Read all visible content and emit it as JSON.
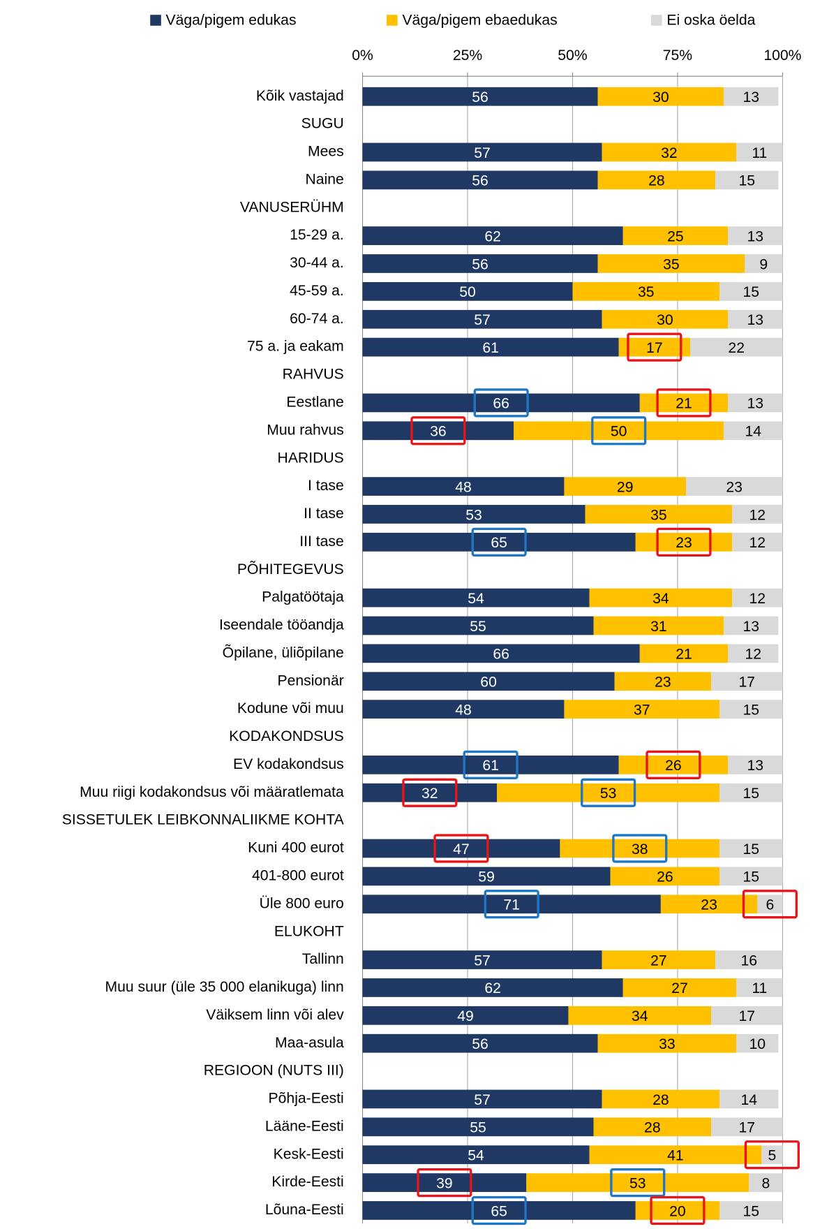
{
  "chart_data": {
    "type": "stacked_barh",
    "categories": [
      "Kõik vastajad",
      "SUGU",
      "Mees",
      "Naine",
      "VANUSERÜHM",
      "15-29 a.",
      "30-44 a.",
      "45-59 a.",
      "60-74 a.",
      "75 a. ja eakam",
      "RAHVUS",
      "Eestlane",
      "Muu rahvus",
      "HARIDUS",
      "I tase",
      "II tase",
      "III tase",
      "PÕHITEGEVUS",
      "Palgatöötaja",
      "Iseendale tööandja",
      "Õpilane, üliõpilane",
      "Pensionär",
      "Kodune või muu",
      "KODAKONDSUS",
      "EV kodakondsus",
      "Muu riigi kodakondsus või määratlemata",
      "SISSETULEK LEIBKONNALIIKME KOHTA",
      "Kuni 400 eurot",
      "401-800 eurot",
      "Üle 800 euro",
      "ELUKOHT",
      "Tallinn",
      "Muu suur (üle 35 000 elanikuga) linn",
      "Väiksem linn või alev",
      "Maa-asula",
      "REGIOON (NUTS III)",
      "Põhja-Eesti",
      "Lääne-Eesti",
      "Kesk-Eesti",
      "Kirde-Eesti",
      "Lõuna-Eesti"
    ],
    "series": [
      {
        "name": "Väga/pigem edukas",
        "color": "#1f3864",
        "label_color": "#ffffff",
        "values": [
          56,
          null,
          57,
          56,
          null,
          62,
          56,
          50,
          57,
          61,
          null,
          66,
          36,
          null,
          48,
          53,
          65,
          null,
          54,
          55,
          66,
          60,
          48,
          null,
          61,
          32,
          null,
          47,
          59,
          71,
          null,
          57,
          62,
          49,
          56,
          null,
          57,
          55,
          54,
          39,
          65
        ],
        "label_box": [
          null,
          null,
          null,
          null,
          null,
          null,
          null,
          null,
          null,
          null,
          null,
          "#1f77c4",
          "#e8141a",
          null,
          null,
          null,
          "#1f77c4",
          null,
          null,
          null,
          null,
          null,
          null,
          null,
          "#1f77c4",
          "#e8141a",
          null,
          "#e8141a",
          null,
          "#1f77c4",
          null,
          null,
          null,
          null,
          null,
          null,
          null,
          null,
          null,
          "#e8141a",
          "#1f77c4"
        ]
      },
      {
        "name": "Väga/pigem ebaedukas",
        "color": "#ffc000",
        "label_color": "#000000",
        "values": [
          30,
          null,
          32,
          28,
          null,
          25,
          35,
          35,
          30,
          17,
          null,
          21,
          50,
          null,
          29,
          35,
          23,
          null,
          34,
          31,
          21,
          23,
          37,
          null,
          26,
          53,
          null,
          38,
          26,
          23,
          null,
          27,
          27,
          34,
          33,
          null,
          28,
          28,
          41,
          53,
          20
        ],
        "label_box": [
          null,
          null,
          null,
          null,
          null,
          null,
          null,
          null,
          null,
          "#e8141a",
          null,
          "#e8141a",
          "#1f77c4",
          null,
          null,
          null,
          "#e8141a",
          null,
          null,
          null,
          null,
          null,
          null,
          null,
          "#e8141a",
          "#1f77c4",
          null,
          "#1f77c4",
          null,
          null,
          null,
          null,
          null,
          null,
          null,
          null,
          null,
          null,
          null,
          "#1f77c4",
          "#e8141a"
        ]
      },
      {
        "name": "Ei oska öelda",
        "color": "#d9d9d9",
        "label_color": "#000000",
        "values": [
          13,
          null,
          11,
          15,
          null,
          13,
          9,
          15,
          13,
          22,
          null,
          13,
          14,
          null,
          23,
          12,
          12,
          null,
          12,
          13,
          12,
          17,
          15,
          null,
          13,
          15,
          null,
          15,
          15,
          6,
          null,
          16,
          11,
          17,
          10,
          null,
          14,
          17,
          5,
          8,
          15
        ],
        "label_box": [
          null,
          null,
          null,
          null,
          null,
          null,
          null,
          null,
          null,
          null,
          null,
          null,
          null,
          null,
          null,
          null,
          null,
          null,
          null,
          null,
          null,
          null,
          null,
          null,
          null,
          null,
          null,
          null,
          null,
          "#e8141a",
          null,
          null,
          null,
          null,
          null,
          null,
          null,
          null,
          "#e8141a",
          null,
          null
        ]
      }
    ],
    "xlim": [
      0,
      100
    ],
    "xticks": [
      {
        "value": 0,
        "label": "0%"
      },
      {
        "value": 25,
        "label": "25%"
      },
      {
        "value": 50,
        "label": "50%"
      },
      {
        "value": 75,
        "label": "75%"
      },
      {
        "value": 100,
        "label": "100%"
      }
    ],
    "grid": true,
    "legend": "top"
  }
}
